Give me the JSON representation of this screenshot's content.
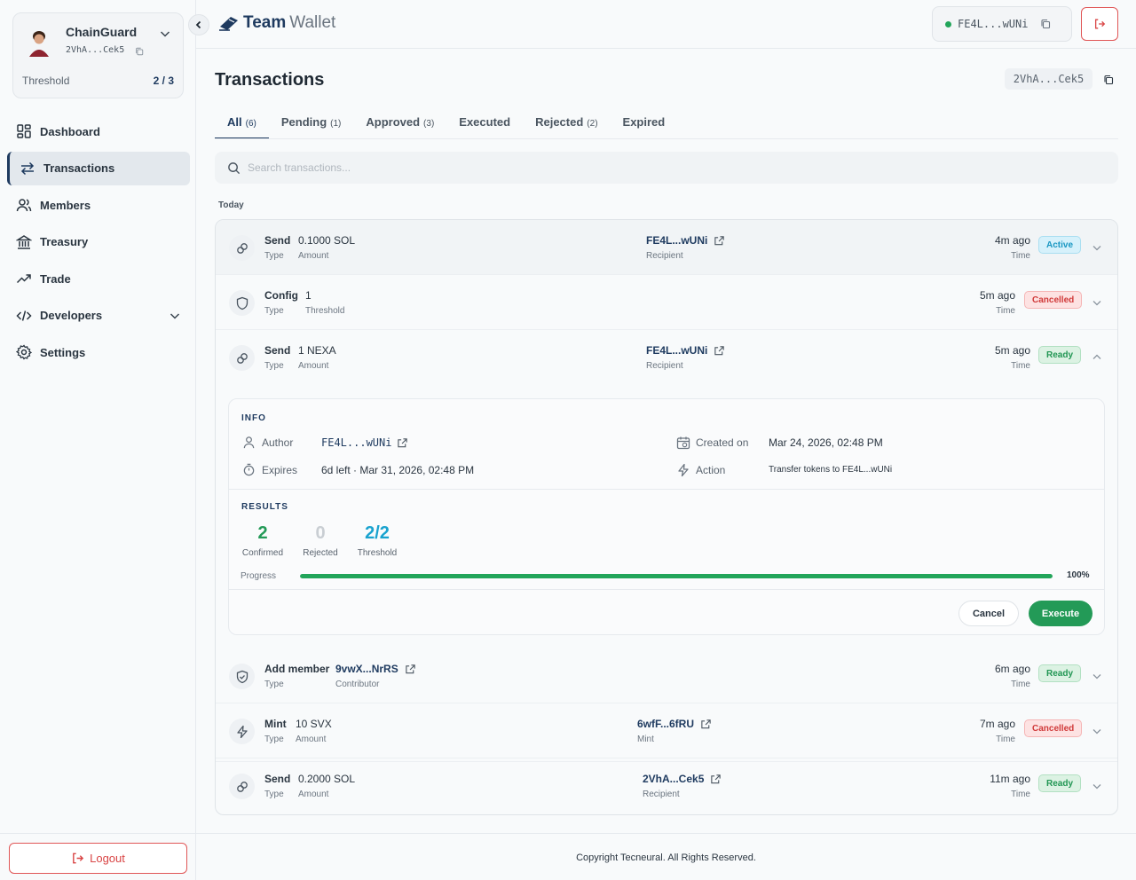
{
  "sidebar": {
    "profile": {
      "name": "ChainGuard",
      "address": "2VhA...Cek5",
      "threshold_label": "Threshold",
      "threshold_value": "2 / 3"
    },
    "items": [
      {
        "label": "Dashboard",
        "icon": "grid-icon"
      },
      {
        "label": "Transactions",
        "icon": "arrows-icon",
        "active": true
      },
      {
        "label": "Members",
        "icon": "users-icon"
      },
      {
        "label": "Treasury",
        "icon": "bank-icon"
      },
      {
        "label": "Trade",
        "icon": "trending-icon"
      },
      {
        "label": "Developers",
        "icon": "code-icon"
      },
      {
        "label": "Settings",
        "icon": "gear-icon"
      }
    ],
    "logout_label": "Logout"
  },
  "header": {
    "brand_bold": "Team",
    "brand_light": "Wallet",
    "wallet_address": "FE4L...wUNi"
  },
  "main": {
    "title": "Transactions",
    "title_address": "2VhA...Cek5",
    "tabs": [
      {
        "label": "All",
        "count": "(6)"
      },
      {
        "label": "Pending",
        "count": "(1)"
      },
      {
        "label": "Approved",
        "count": "(3)"
      },
      {
        "label": "Executed",
        "count": ""
      },
      {
        "label": "Rejected",
        "count": "(2)"
      },
      {
        "label": "Expired",
        "count": ""
      }
    ],
    "search_placeholder": "Search transactions...",
    "section_today": "Today",
    "time_label": "Time",
    "transactions": [
      {
        "type": "Send",
        "type_label": "Type",
        "value": "0.1000 SOL",
        "value_label": "Amount",
        "link": "FE4L...wUNi",
        "link_label": "Recipient",
        "time": "4m ago",
        "status": "Active"
      },
      {
        "type": "Config",
        "type_label": "Type",
        "value": "1",
        "value_label": "Threshold",
        "link": "",
        "link_label": "",
        "time": "5m ago",
        "status": "Cancelled"
      },
      {
        "type": "Send",
        "type_label": "Type",
        "value": "1 NEXA",
        "value_label": "Amount",
        "link": "FE4L...wUNi",
        "link_label": "Recipient",
        "time": "5m ago",
        "status": "Ready"
      },
      {
        "type": "Add member",
        "type_label": "Type",
        "value": "9vwX...NrRS",
        "value_label": "Contributor",
        "link": "",
        "link_label": "",
        "time": "6m ago",
        "status": "Ready"
      },
      {
        "type": "Mint",
        "type_label": "Type",
        "value": "10 SVX",
        "value_label": "Amount",
        "link": "6wfF...6fRU",
        "link_label": "Mint",
        "time": "7m ago",
        "status": "Cancelled"
      },
      {
        "type": "Send",
        "type_label": "Type",
        "value": "0.2000 SOL",
        "value_label": "Amount",
        "link": "2VhA...Cek5",
        "link_label": "Recipient",
        "time": "11m ago",
        "status": "Ready"
      }
    ],
    "detail": {
      "info_heading": "INFO",
      "author_label": "Author",
      "author_value": "FE4L...wUNi",
      "expires_label": "Expires",
      "expires_value": "6d left · Mar 31, 2026, 02:48 PM",
      "created_label": "Created on",
      "created_value": "Mar 24, 2026, 02:48 PM",
      "action_label": "Action",
      "action_value": "Transfer tokens to FE4L...wUNi",
      "results_heading": "RESULTS",
      "confirmed_value": "2",
      "confirmed_label": "Confirmed",
      "rejected_value": "0",
      "rejected_label": "Rejected",
      "threshold_value": "2/2",
      "threshold_label": "Threshold",
      "progress_label": "Progress",
      "progress_percent": 100,
      "progress_text": "100%",
      "cancel_label": "Cancel",
      "execute_label": "Execute"
    }
  },
  "footer": {
    "text": "Copyright Tecneural. All Rights Reserved."
  },
  "colors": {
    "brand": "#1e3a5f",
    "success": "#22a55a",
    "danger": "#d94545",
    "info": "#1a97c2"
  }
}
